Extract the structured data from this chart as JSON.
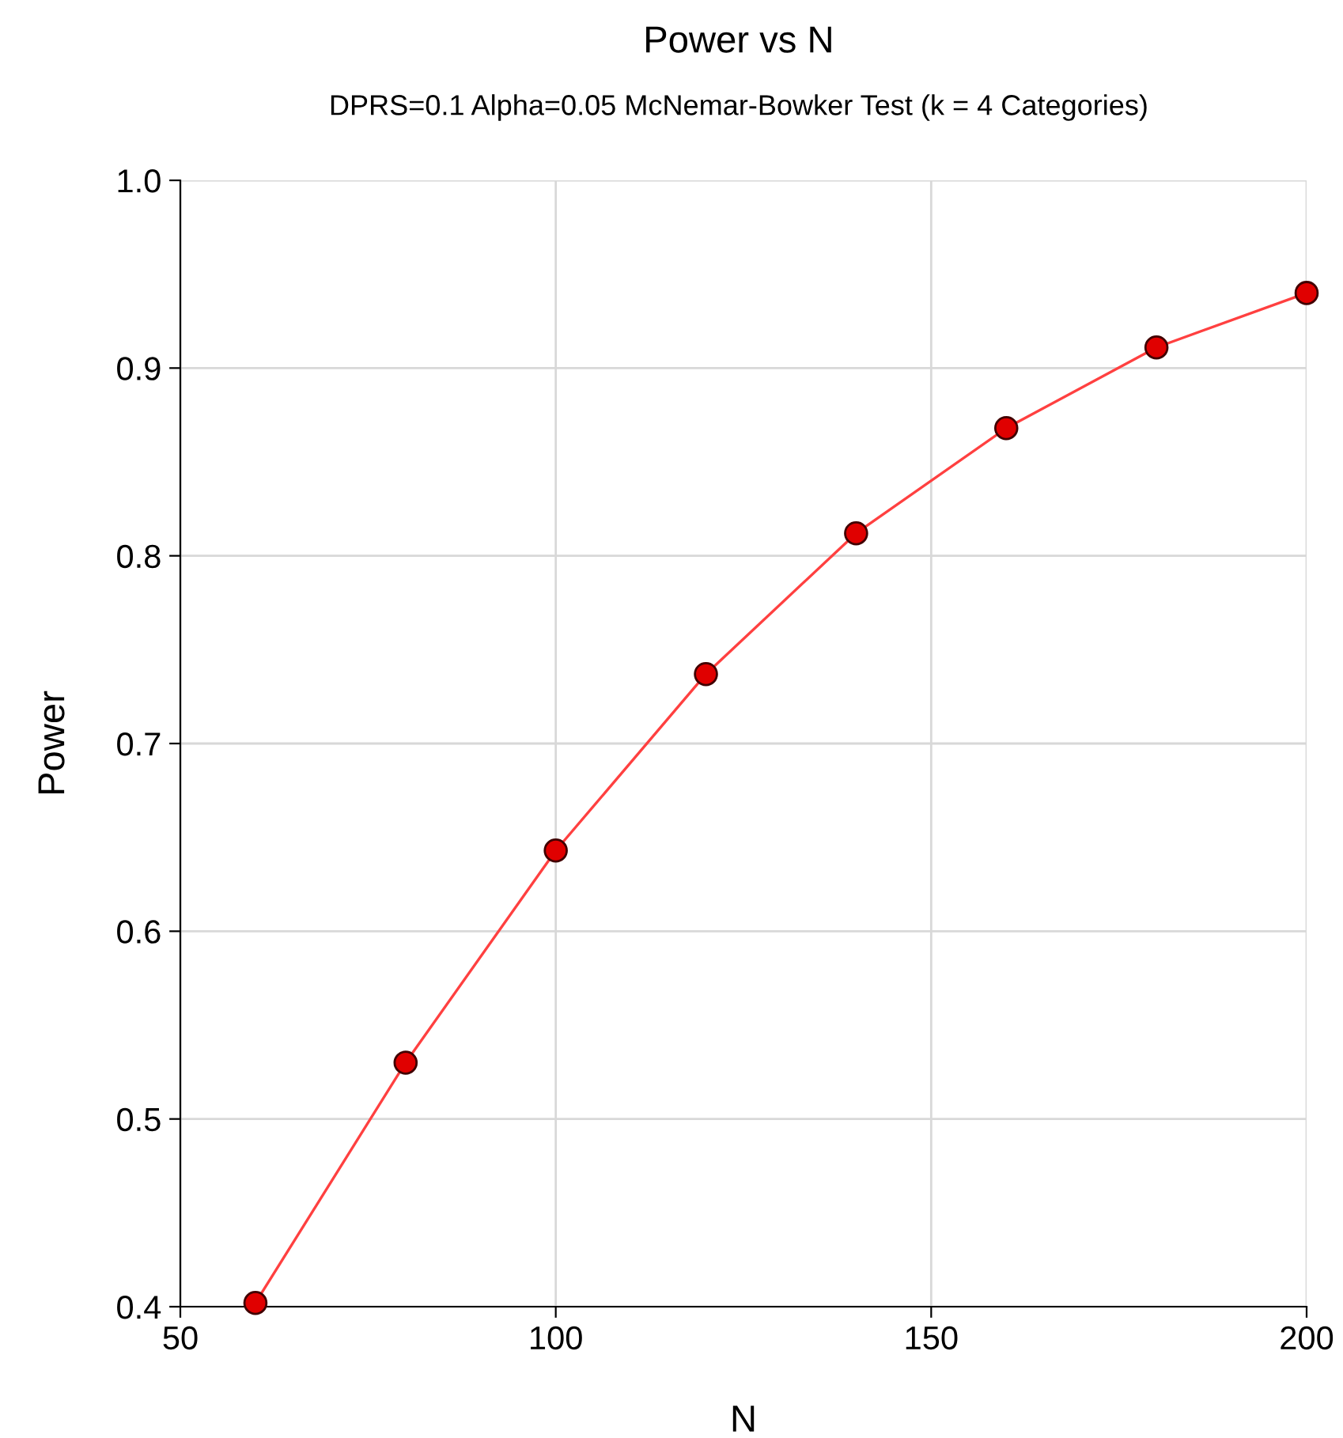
{
  "chart_data": {
    "type": "line",
    "title": "Power vs N",
    "subtitle": "DPRS=0.1 Alpha=0.05 McNemar-Bowker Test (k = 4 Categories)",
    "xlabel": "N",
    "ylabel": "Power",
    "x": [
      60,
      80,
      100,
      120,
      140,
      160,
      180,
      200
    ],
    "series": [
      {
        "color": "#ff4040",
        "values": [
          0.402,
          0.53,
          0.643,
          0.737,
          0.812,
          0.868,
          0.911,
          0.94
        ]
      }
    ],
    "xlim": [
      50,
      200
    ],
    "xticks": [
      50,
      100,
      150,
      200
    ],
    "ylim": [
      0.4,
      1.0
    ],
    "yticks": [
      0.4,
      0.5,
      0.6,
      0.7,
      0.8,
      0.9,
      {
        "value": 1.0,
        "label": "1.0"
      }
    ],
    "grid": true,
    "marker": "circle",
    "line_style": "solid"
  }
}
